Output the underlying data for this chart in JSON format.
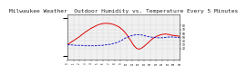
{
  "title": "Milwaukee Weather  Outdoor Humidity vs. Temperature Every 5 Minutes",
  "red_line_y": [
    30,
    35,
    40,
    45,
    50,
    56,
    62,
    67,
    72,
    76,
    80,
    83,
    85,
    86,
    86,
    85,
    83,
    80,
    76,
    70,
    62,
    52,
    40,
    28,
    20,
    18,
    22,
    28,
    35,
    42,
    48,
    52,
    55,
    57,
    58,
    57,
    55,
    54,
    53,
    52
  ],
  "blue_line_y": [
    30,
    29,
    29,
    28,
    28,
    28,
    27,
    27,
    27,
    27,
    27,
    28,
    28,
    29,
    30,
    31,
    33,
    35,
    38,
    42,
    47,
    50,
    53,
    55,
    56,
    56,
    55,
    53,
    51,
    50,
    49,
    48,
    48,
    48,
    49,
    50,
    50,
    50,
    49,
    48
  ],
  "ylim": [
    -10,
    110
  ],
  "yticks_right": [
    20,
    30,
    40,
    50,
    60,
    70,
    80
  ],
  "ytick_labels_right": [
    "20",
    "30",
    "40",
    "50",
    "60",
    "70",
    "80"
  ],
  "background_color": "#ffffff",
  "plot_bg_color": "#f0f0f0",
  "red_color": "#dd0000",
  "blue_color": "#0000cc",
  "grid_color": "#aaaaaa",
  "title_fontsize": 4.5,
  "n_points": 40,
  "x_label_count": 20
}
